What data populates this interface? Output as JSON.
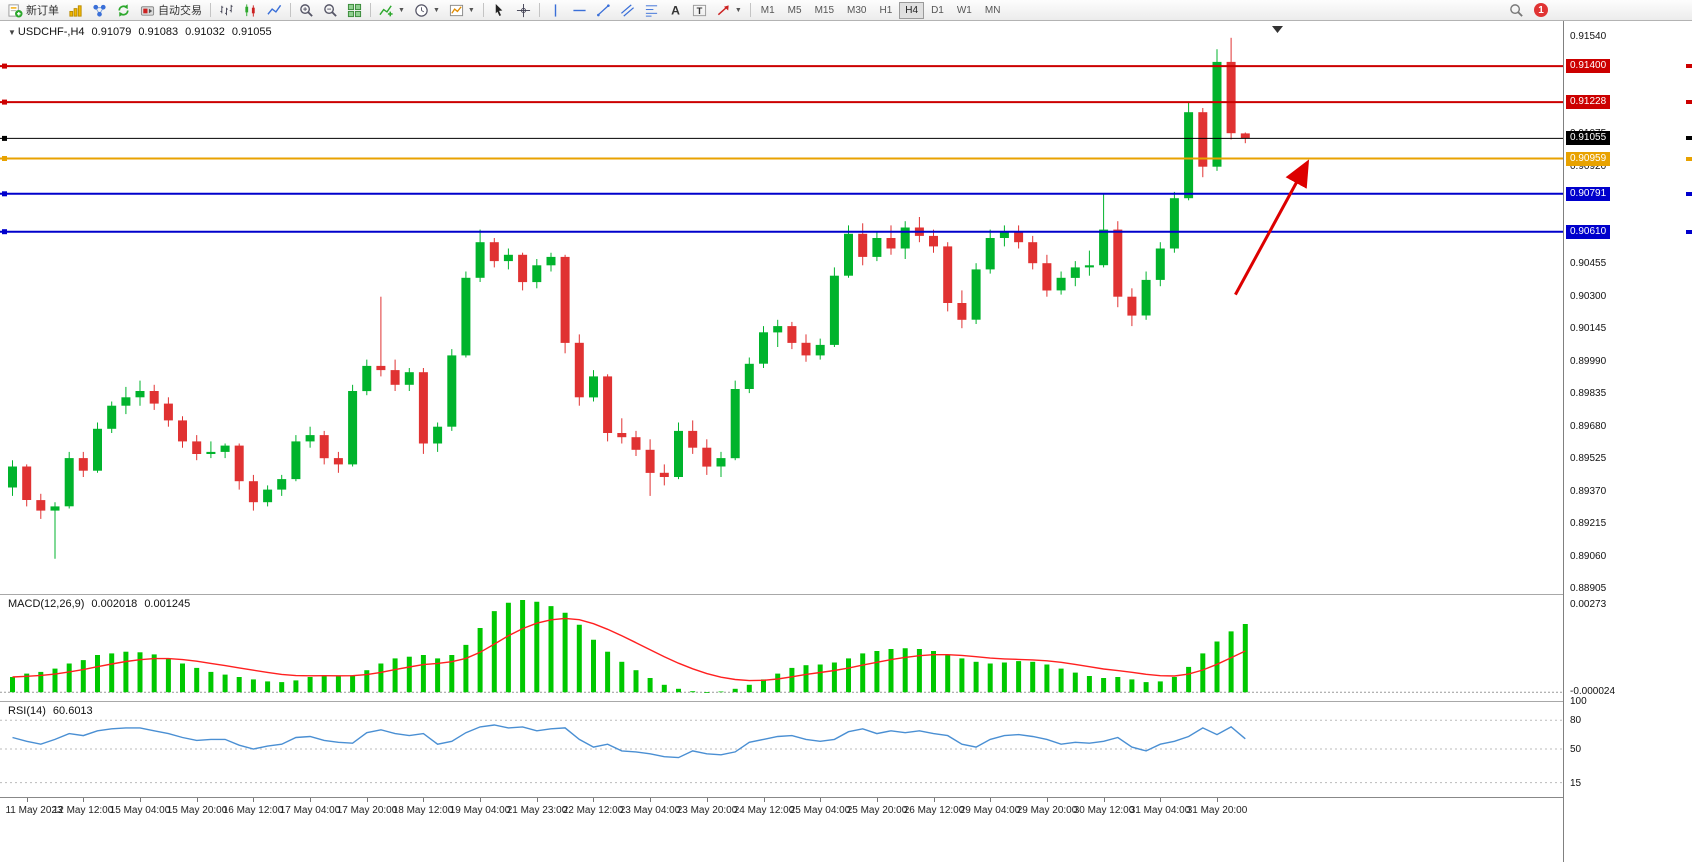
{
  "toolbar": {
    "new_order_label": "新订单",
    "autotrading_label": "自动交易",
    "timeframes": [
      "M1",
      "M5",
      "M15",
      "M30",
      "H1",
      "H4",
      "D1",
      "W1",
      "MN"
    ],
    "active_timeframe": "H4",
    "notification_count": "1"
  },
  "symbol_info": {
    "symbol": "USDCHF-,H4",
    "open": "0.91079",
    "high": "0.91083",
    "low": "0.91032",
    "close": "0.91055"
  },
  "indicators": {
    "macd": {
      "label": "MACD(12,26,9)",
      "value_main": "0.002018",
      "value_signal": "0.001245",
      "axis_labels": [
        "0.00273",
        "-0.000024"
      ]
    },
    "rsi": {
      "label": "RSI(14)",
      "value": "60.6013",
      "axis_labels": [
        "100",
        "80",
        "50",
        "15"
      ],
      "levels": [
        80,
        50,
        15
      ]
    }
  },
  "chart_data": {
    "type": "candlestick",
    "symbol": "USDCHF-",
    "timeframe": "H4",
    "ylim": [
      0.88882,
      0.91615
    ],
    "price_axis_labels": [
      "0.91540",
      "0.91385",
      "0.91230",
      "0.91075",
      "0.90920",
      "0.90765",
      "0.90610",
      "0.90455",
      "0.90300",
      "0.90145",
      "0.89990",
      "0.89835",
      "0.89680",
      "0.89525",
      "0.89370",
      "0.89215",
      "0.89060",
      "0.88905"
    ],
    "time_labels": [
      "11 May 2023",
      "12 May 12:00",
      "15 May 04:00",
      "15 May 20:00",
      "16 May 12:00",
      "17 May 04:00",
      "17 May 20:00",
      "18 May 12:00",
      "19 May 04:00",
      "21 May 23:00",
      "22 May 12:00",
      "23 May 04:00",
      "23 May 20:00",
      "24 May 12:00",
      "25 May 04:00",
      "25 May 20:00",
      "26 May 12:00",
      "29 May 04:00",
      "29 May 20:00",
      "30 May 12:00",
      "31 May 04:00",
      "31 May 20:00"
    ],
    "candles_ohlc": [
      [
        0.8939,
        0.8952,
        0.8935,
        0.8949
      ],
      [
        0.8949,
        0.895,
        0.893,
        0.8933
      ],
      [
        0.8933,
        0.8936,
        0.8924,
        0.8928
      ],
      [
        0.8928,
        0.8932,
        0.8905,
        0.893
      ],
      [
        0.893,
        0.8956,
        0.8929,
        0.8953
      ],
      [
        0.8953,
        0.8956,
        0.8944,
        0.8947
      ],
      [
        0.8947,
        0.897,
        0.8946,
        0.8967
      ],
      [
        0.8967,
        0.898,
        0.8965,
        0.8978
      ],
      [
        0.8978,
        0.8987,
        0.8974,
        0.8982
      ],
      [
        0.8982,
        0.899,
        0.8978,
        0.8985
      ],
      [
        0.8985,
        0.8988,
        0.8976,
        0.8979
      ],
      [
        0.8979,
        0.8982,
        0.8968,
        0.8971
      ],
      [
        0.8971,
        0.8973,
        0.8958,
        0.8961
      ],
      [
        0.8961,
        0.8964,
        0.8952,
        0.8955
      ],
      [
        0.8955,
        0.8961,
        0.8953,
        0.8956
      ],
      [
        0.8956,
        0.896,
        0.8953,
        0.8959
      ],
      [
        0.8959,
        0.896,
        0.8938,
        0.8942
      ],
      [
        0.8942,
        0.8945,
        0.8928,
        0.8932
      ],
      [
        0.8932,
        0.894,
        0.893,
        0.8938
      ],
      [
        0.8938,
        0.8945,
        0.8935,
        0.8943
      ],
      [
        0.8943,
        0.8964,
        0.8942,
        0.8961
      ],
      [
        0.8961,
        0.8968,
        0.8958,
        0.8964
      ],
      [
        0.8964,
        0.8966,
        0.895,
        0.8953
      ],
      [
        0.8953,
        0.8956,
        0.8946,
        0.895
      ],
      [
        0.895,
        0.8988,
        0.8949,
        0.8985
      ],
      [
        0.8985,
        0.9,
        0.8983,
        0.8997
      ],
      [
        0.8997,
        0.903,
        0.8992,
        0.8995
      ],
      [
        0.8995,
        0.9,
        0.8985,
        0.8988
      ],
      [
        0.8988,
        0.8996,
        0.8985,
        0.8994
      ],
      [
        0.8994,
        0.8996,
        0.8955,
        0.896
      ],
      [
        0.896,
        0.897,
        0.8956,
        0.8968
      ],
      [
        0.8968,
        0.9005,
        0.8966,
        0.9002
      ],
      [
        0.9002,
        0.9042,
        0.9001,
        0.9039
      ],
      [
        0.9039,
        0.9062,
        0.9037,
        0.9056
      ],
      [
        0.9056,
        0.9058,
        0.9044,
        0.9047
      ],
      [
        0.9047,
        0.9053,
        0.9043,
        0.905
      ],
      [
        0.905,
        0.9051,
        0.9033,
        0.9037
      ],
      [
        0.9037,
        0.9048,
        0.9034,
        0.9045
      ],
      [
        0.9045,
        0.9051,
        0.9042,
        0.9049
      ],
      [
        0.9049,
        0.905,
        0.9003,
        0.9008
      ],
      [
        0.9008,
        0.9012,
        0.8978,
        0.8982
      ],
      [
        0.8982,
        0.8995,
        0.898,
        0.8992
      ],
      [
        0.8992,
        0.8993,
        0.8961,
        0.8965
      ],
      [
        0.8965,
        0.8972,
        0.896,
        0.8963
      ],
      [
        0.8963,
        0.8966,
        0.8954,
        0.8957
      ],
      [
        0.8957,
        0.8962,
        0.8935,
        0.8946
      ],
      [
        0.8946,
        0.895,
        0.894,
        0.8944
      ],
      [
        0.8944,
        0.897,
        0.8943,
        0.8966
      ],
      [
        0.8966,
        0.8971,
        0.8955,
        0.8958
      ],
      [
        0.8958,
        0.8962,
        0.8945,
        0.8949
      ],
      [
        0.8949,
        0.8956,
        0.8944,
        0.8953
      ],
      [
        0.8953,
        0.899,
        0.8952,
        0.8986
      ],
      [
        0.8986,
        0.9001,
        0.8984,
        0.8998
      ],
      [
        0.8998,
        0.9016,
        0.8996,
        0.9013
      ],
      [
        0.9013,
        0.9019,
        0.9006,
        0.9016
      ],
      [
        0.9016,
        0.9018,
        0.9005,
        0.9008
      ],
      [
        0.9008,
        0.9012,
        0.8999,
        0.9002
      ],
      [
        0.9002,
        0.901,
        0.9,
        0.9007
      ],
      [
        0.9007,
        0.9044,
        0.9006,
        0.904
      ],
      [
        0.904,
        0.9064,
        0.9039,
        0.906
      ],
      [
        0.906,
        0.9065,
        0.9045,
        0.9049
      ],
      [
        0.9049,
        0.9061,
        0.9047,
        0.9058
      ],
      [
        0.9058,
        0.9064,
        0.905,
        0.9053
      ],
      [
        0.9053,
        0.9066,
        0.9048,
        0.9063
      ],
      [
        0.9063,
        0.9068,
        0.9056,
        0.9059
      ],
      [
        0.9059,
        0.9062,
        0.9051,
        0.9054
      ],
      [
        0.9054,
        0.9056,
        0.9023,
        0.9027
      ],
      [
        0.9027,
        0.9033,
        0.9015,
        0.9019
      ],
      [
        0.9019,
        0.9046,
        0.9017,
        0.9043
      ],
      [
        0.9043,
        0.9062,
        0.9041,
        0.9058
      ],
      [
        0.9058,
        0.9064,
        0.9054,
        0.9061
      ],
      [
        0.9061,
        0.9064,
        0.9053,
        0.9056
      ],
      [
        0.9056,
        0.9059,
        0.9043,
        0.9046
      ],
      [
        0.9046,
        0.905,
        0.903,
        0.9033
      ],
      [
        0.9033,
        0.9042,
        0.9031,
        0.9039
      ],
      [
        0.9039,
        0.9047,
        0.9035,
        0.9044
      ],
      [
        0.9044,
        0.9052,
        0.904,
        0.9045
      ],
      [
        0.9045,
        0.9079,
        0.9044,
        0.9062
      ],
      [
        0.9062,
        0.9066,
        0.9025,
        0.903
      ],
      [
        0.903,
        0.9034,
        0.9016,
        0.9021
      ],
      [
        0.9021,
        0.9042,
        0.9019,
        0.9038
      ],
      [
        0.9038,
        0.9056,
        0.9035,
        0.9053
      ],
      [
        0.9053,
        0.908,
        0.9051,
        0.9077
      ],
      [
        0.9077,
        0.9123,
        0.9076,
        0.9118
      ],
      [
        0.9118,
        0.912,
        0.9087,
        0.9092
      ],
      [
        0.9092,
        0.9148,
        0.909,
        0.9142
      ],
      [
        0.9142,
        0.91535,
        0.9105,
        0.9108
      ],
      [
        0.91079,
        0.91083,
        0.91032,
        0.91055
      ]
    ],
    "macd_hist": [
      0.00045,
      0.00055,
      0.0006,
      0.0007,
      0.00085,
      0.00095,
      0.0011,
      0.00115,
      0.0012,
      0.00118,
      0.00112,
      0.001,
      0.00085,
      0.00072,
      0.0006,
      0.00052,
      0.00045,
      0.00038,
      0.00032,
      0.0003,
      0.00035,
      0.00045,
      0.0005,
      0.00048,
      0.0005,
      0.00065,
      0.00085,
      0.001,
      0.00105,
      0.0011,
      0.001,
      0.0011,
      0.0014,
      0.0019,
      0.0024,
      0.00265,
      0.00273,
      0.00268,
      0.00255,
      0.00235,
      0.002,
      0.00155,
      0.0012,
      0.0009,
      0.00065,
      0.00042,
      0.00022,
      0.0001,
      3e-05,
      -2.4e-05,
      2e-05,
      0.0001,
      0.00022,
      0.00038,
      0.00055,
      0.00072,
      0.0008,
      0.00082,
      0.00088,
      0.001,
      0.00115,
      0.00122,
      0.00128,
      0.0013,
      0.00128,
      0.00122,
      0.00112,
      0.001,
      0.0009,
      0.00085,
      0.00088,
      0.00092,
      0.0009,
      0.00082,
      0.0007,
      0.00058,
      0.00048,
      0.00042,
      0.00045,
      0.00038,
      0.0003,
      0.00032,
      0.00045,
      0.00075,
      0.00115,
      0.0015,
      0.0018,
      0.00202
    ],
    "rsi": [
      62,
      58,
      55,
      60,
      66,
      64,
      69,
      71,
      72,
      72,
      69,
      66,
      62,
      59,
      60,
      60,
      54,
      50,
      53,
      55,
      62,
      63,
      59,
      57,
      56,
      67,
      70,
      66,
      64,
      66,
      55,
      58,
      67,
      73,
      75,
      72,
      73,
      69,
      71,
      72,
      60,
      52,
      55,
      48,
      47,
      45,
      42,
      41,
      48,
      45,
      44,
      47,
      57,
      60,
      63,
      64,
      60,
      58,
      60,
      68,
      71,
      66,
      69,
      67,
      69,
      66,
      64,
      55,
      52,
      60,
      64,
      65,
      63,
      60,
      55,
      57,
      56,
      58,
      62,
      52,
      48,
      55,
      58,
      63,
      72,
      65,
      73,
      60.6
    ],
    "hlines": [
      {
        "price": 0.914,
        "label": "0.91400",
        "color": "#cc0000",
        "kind": "resistance"
      },
      {
        "price": 0.91228,
        "label": "0.91228",
        "color": "#cc0000",
        "kind": "resistance"
      },
      {
        "price": 0.91055,
        "label": "0.91055",
        "color": "#000000",
        "kind": "current-price"
      },
      {
        "price": 0.90959,
        "label": "0.90959",
        "color": "#e8a200",
        "kind": "support"
      },
      {
        "price": 0.90791,
        "label": "0.90791",
        "color": "#0000cc",
        "kind": "support"
      },
      {
        "price": 0.9061,
        "label": "0.90610",
        "color": "#0000cc",
        "kind": "support"
      }
    ],
    "arrow": {
      "from_index": 86.3,
      "from_price": 0.9031,
      "to_index": 91.3,
      "to_price": 0.9093,
      "color": "#dd0000"
    },
    "colors": {
      "up": "#00b32c",
      "down": "#e03232",
      "macd_hist": "#00c800",
      "macd_signal": "#ff2020",
      "rsi_line": "#4a8fd3"
    },
    "macd_params": {
      "fast": 12,
      "slow": 26,
      "signal": 9
    },
    "rsi_period": 14
  }
}
